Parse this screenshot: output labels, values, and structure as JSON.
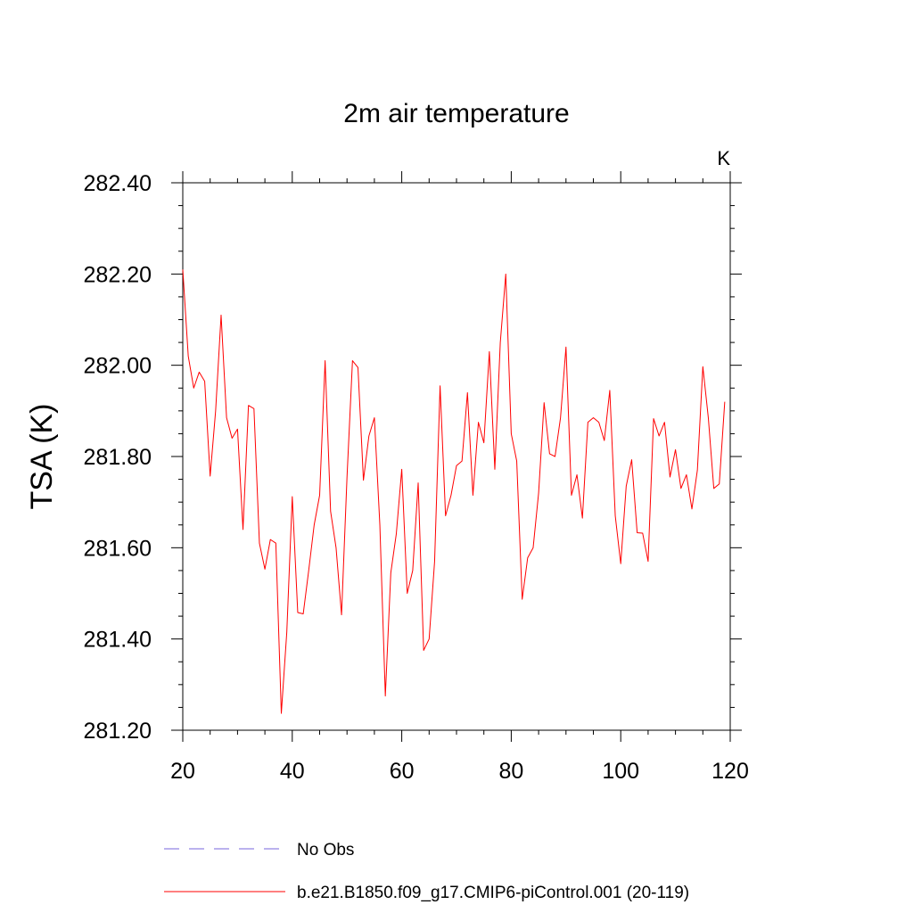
{
  "chart_data": {
    "type": "line",
    "title": "2m air temperature",
    "units_label": "K",
    "xlabel": "",
    "ylabel": "TSA  (K)",
    "xlim": [
      20,
      120
    ],
    "ylim": [
      281.2,
      282.4
    ],
    "x_ticks": [
      20,
      40,
      60,
      80,
      100,
      120
    ],
    "x_tick_labels": [
      "20",
      "40",
      "60",
      "80",
      "100",
      "120"
    ],
    "y_ticks": [
      281.2,
      281.4,
      281.6,
      281.8,
      282.0,
      282.2,
      282.4
    ],
    "y_tick_labels": [
      "281.20",
      "281.40",
      "281.60",
      "281.80",
      "282.00",
      "282.20",
      "282.40"
    ],
    "legend": [
      {
        "label": "No Obs",
        "color": "#7766dd",
        "style": "dashed"
      },
      {
        "label": "b.e21.B1850.f09_g17.CMIP6-piControl.001 (20-119)",
        "color": "#ff0000",
        "style": "solid"
      }
    ],
    "series": [
      {
        "name": "b.e21.B1850.f09_g17.CMIP6-piControl.001 (20-119)",
        "color": "#ff0000",
        "x": [
          20,
          21,
          22,
          23,
          24,
          25,
          26,
          27,
          28,
          29,
          30,
          31,
          32,
          33,
          34,
          35,
          36,
          37,
          38,
          39,
          40,
          41,
          42,
          43,
          44,
          45,
          46,
          47,
          48,
          49,
          50,
          51,
          52,
          53,
          54,
          55,
          56,
          57,
          58,
          59,
          60,
          61,
          62,
          63,
          64,
          65,
          66,
          67,
          68,
          69,
          70,
          71,
          72,
          73,
          74,
          75,
          76,
          77,
          78,
          79,
          80,
          81,
          82,
          83,
          84,
          85,
          86,
          87,
          88,
          89,
          90,
          91,
          92,
          93,
          94,
          95,
          96,
          97,
          98,
          99,
          100,
          101,
          102,
          103,
          104,
          105,
          106,
          107,
          108,
          109,
          110,
          111,
          112,
          113,
          114,
          115,
          116,
          117,
          118,
          119
        ],
        "values": [
          282.21,
          282.02,
          281.95,
          281.985,
          281.965,
          281.757,
          281.9,
          282.11,
          281.885,
          281.84,
          281.86,
          281.64,
          281.912,
          281.905,
          281.61,
          281.553,
          281.618,
          281.61,
          281.237,
          281.415,
          281.712,
          281.458,
          281.455,
          281.55,
          281.65,
          281.715,
          282.01,
          281.68,
          281.6,
          281.453,
          281.755,
          282.01,
          281.995,
          281.748,
          281.845,
          281.885,
          281.65,
          281.275,
          281.545,
          281.63,
          281.772,
          281.5,
          281.55,
          281.742,
          281.375,
          281.4,
          281.57,
          281.955,
          281.67,
          281.715,
          281.78,
          281.79,
          281.94,
          281.715,
          281.875,
          281.83,
          282.03,
          281.772,
          282.05,
          282.2,
          281.85,
          281.79,
          281.487,
          281.578,
          281.6,
          281.72,
          281.918,
          281.806,
          281.8,
          281.885,
          282.04,
          281.715,
          281.76,
          281.665,
          281.875,
          281.885,
          281.875,
          281.835,
          281.945,
          281.67,
          281.565,
          281.735,
          281.793,
          281.633,
          281.632,
          281.57,
          281.883,
          281.845,
          281.875,
          281.755,
          281.815,
          281.73,
          281.76,
          281.685,
          281.77,
          281.997,
          281.885,
          281.73,
          281.74,
          281.92
        ]
      }
    ]
  }
}
